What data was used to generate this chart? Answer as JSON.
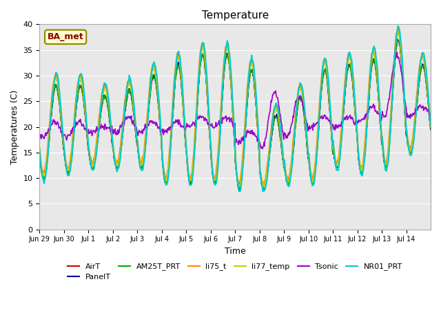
{
  "title": "Temperature",
  "xlabel": "Time",
  "ylabel": "Temperatures (C)",
  "ylim": [
    0,
    40
  ],
  "background_color": "#e8e8e8",
  "tick_labels": [
    "Jun 29",
    "Jun 30",
    "Jul 1",
    "Jul 2",
    "Jul 3",
    "Jul 4",
    "Jul 5",
    "Jul 6",
    "Jul 7",
    "Jul 8",
    "Jul 9",
    "Jul 10",
    "Jul 11",
    "Jul 12",
    "Jul 13",
    "Jul 14"
  ],
  "station_label": "BA_met",
  "series": {
    "AirT": {
      "color": "#cc0000",
      "lw": 1.2
    },
    "PanelT": {
      "color": "#000099",
      "lw": 1.2
    },
    "AM25T_PRT": {
      "color": "#00aa00",
      "lw": 1.2
    },
    "li75_t": {
      "color": "#ff8800",
      "lw": 1.5
    },
    "li77_temp": {
      "color": "#cccc00",
      "lw": 1.5
    },
    "Tsonic": {
      "color": "#9900cc",
      "lw": 1.2
    },
    "NR01_PRT": {
      "color": "#00cccc",
      "lw": 1.5
    }
  },
  "legend_order": [
    "AirT",
    "PanelT",
    "AM25T_PRT",
    "li75_t",
    "li77_temp",
    "Tsonic",
    "NR01_PRT"
  ],
  "day_mins": [
    10,
    11,
    12,
    12,
    12,
    9,
    9,
    9,
    8,
    8,
    9,
    9,
    12,
    11,
    12,
    15
  ],
  "day_maxs": [
    28,
    28,
    26,
    27,
    30,
    32,
    34,
    34,
    31,
    22,
    26,
    31,
    32,
    33,
    37,
    32
  ],
  "tsonic_mins": [
    18,
    18,
    19,
    19,
    19,
    19,
    20,
    20,
    17,
    16,
    18,
    20,
    20,
    21,
    22,
    22
  ],
  "tsonic_maxs": [
    21,
    21,
    20,
    22,
    21,
    21,
    22,
    22,
    19,
    27,
    26,
    22,
    22,
    24,
    34,
    24
  ]
}
